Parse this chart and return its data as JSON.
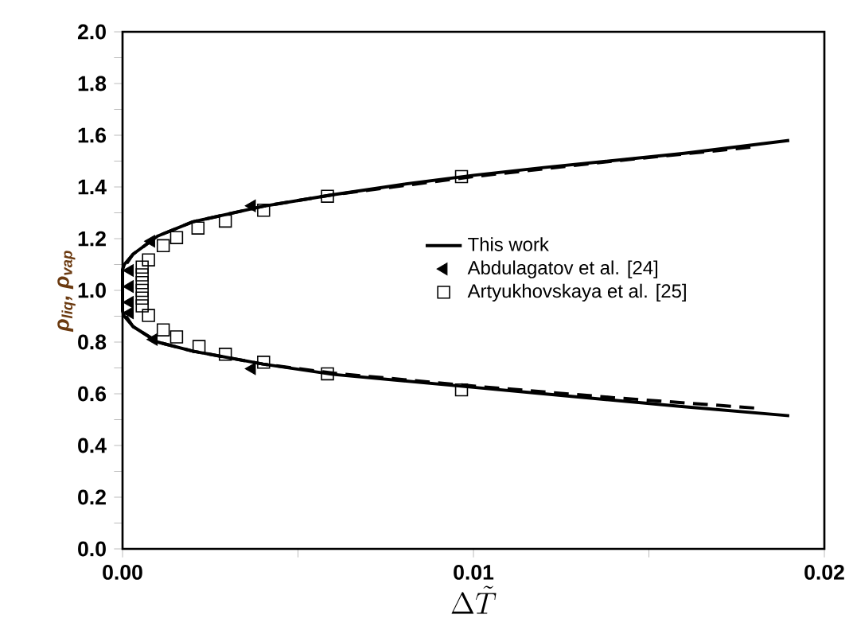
{
  "chart_data": {
    "type": "line",
    "xlabel": "\\Delta\\tilde{T}",
    "ylabel": "*ρ*$_{liq}$, *ρ*$_{vap}$",
    "xlim": [
      0,
      0.02
    ],
    "ylim": [
      0,
      2.0
    ],
    "xticks": [
      "0.00",
      {
        "value": 0.005,
        "label": null
      },
      {
        "value": 0.01,
        "label": "0.01"
      },
      {
        "value": 0.015,
        "label": null
      },
      {
        "value": 0.02,
        "label": "0.02"
      }
    ],
    "yticks": [
      {
        "value": 0,
        "label": "0.0"
      },
      {
        "value": 0.1,
        "label": null
      },
      {
        "value": 0.2,
        "label": "0.2"
      },
      {
        "value": 0.3,
        "label": null
      },
      {
        "value": 0.4,
        "label": "0.4"
      },
      {
        "value": 0.5,
        "label": null
      },
      {
        "value": 0.6,
        "label": "0.6"
      },
      {
        "value": 0.7,
        "label": null
      },
      {
        "value": 0.8,
        "label": "0.8"
      },
      {
        "value": 0.9,
        "label": null
      },
      {
        "value": 1.0,
        "label": "1.0"
      },
      {
        "value": 1.1,
        "label": null
      },
      {
        "value": 1.2,
        "label": "1.2"
      },
      {
        "value": 1.3,
        "label": null
      },
      {
        "value": 1.4,
        "label": "1.4"
      },
      {
        "value": 1.5,
        "label": null
      },
      {
        "value": 1.6,
        "label": "1.6"
      },
      {
        "value": 1.7,
        "label": null
      },
      {
        "value": 1.8,
        "label": "1.8"
      },
      {
        "value": 1.9,
        "label": null
      },
      {
        "value": 2.0,
        "label": "2.0"
      }
    ],
    "grid": false,
    "legend": "center",
    "series": [
      {
        "name": "This work",
        "color": "#000000",
        "marker": "none",
        "line_style": "solid",
        "x": [
          0.019,
          0.016,
          0.012,
          0.01,
          0.006,
          0.004,
          0.002,
          0.001,
          0.0003,
          5e-05,
          0,
          0,
          5e-05,
          0.0003,
          0.001,
          0.002,
          0.004,
          0.006,
          0.008,
          0.01,
          0.012,
          0.016,
          0.019
        ],
        "values": [
          0.515,
          0.55,
          0.6,
          0.625,
          0.675,
          0.715,
          0.765,
          0.8,
          0.86,
          0.9,
          0.92,
          1.08,
          1.1,
          1.14,
          1.21,
          1.265,
          1.325,
          1.37,
          1.41,
          1.445,
          1.475,
          1.53,
          1.58
        ]
      },
      {
        "name": "Abdulagatov et al. [24]",
        "type": "scatter",
        "color": "#000000",
        "marker": "triangle",
        "x": [
          0.00369,
          0.00082,
          0.00021,
          0.00021,
          0.00021,
          0.00021,
          0.00089,
          0.00369
        ],
        "values": [
          1.327,
          1.19,
          1.077,
          1.015,
          0.954,
          0.913,
          0.81,
          0.697
        ]
      },
      {
        "name": "Artyukhovskaya et al. [25]",
        "type": "scatter",
        "color": "#000000",
        "marker": "square",
        "x": [
          0.00966,
          0.00584,
          0.00402,
          0.00293,
          0.00215,
          0.00154,
          0.00116,
          0.00074,
          0.00056,
          0.00056,
          0.00056,
          0.00056,
          0.00056,
          0.00056,
          0.00074,
          0.00116,
          0.00154,
          0.00218,
          0.00293,
          0.00402,
          0.00584,
          0.00966
        ],
        "values": [
          1.44,
          1.364,
          1.31,
          1.268,
          1.241,
          1.204,
          1.173,
          1.118,
          1.09,
          1.06,
          1.03,
          1.0,
          0.97,
          0.94,
          0.903,
          0.847,
          0.82,
          0.783,
          0.753,
          0.722,
          0.677,
          0.615
        ]
      },
      {
        "color": "#000000",
        "marker": "none",
        "line_style": "dashed",
        "x": [
          0.018,
          0.014,
          0.01,
          0.006,
          0.004,
          0.002,
          0.001,
          0.0003,
          0,
          0,
          0.0003,
          0.001,
          0.002,
          0.004,
          0.006,
          0.01,
          0.014,
          0.018
        ],
        "values": [
          0.545,
          0.585,
          0.63,
          0.68,
          0.715,
          0.765,
          0.8,
          0.86,
          0.92,
          1.08,
          1.14,
          1.21,
          1.265,
          1.325,
          1.37,
          1.44,
          1.5,
          1.555
        ]
      }
    ]
  }
}
